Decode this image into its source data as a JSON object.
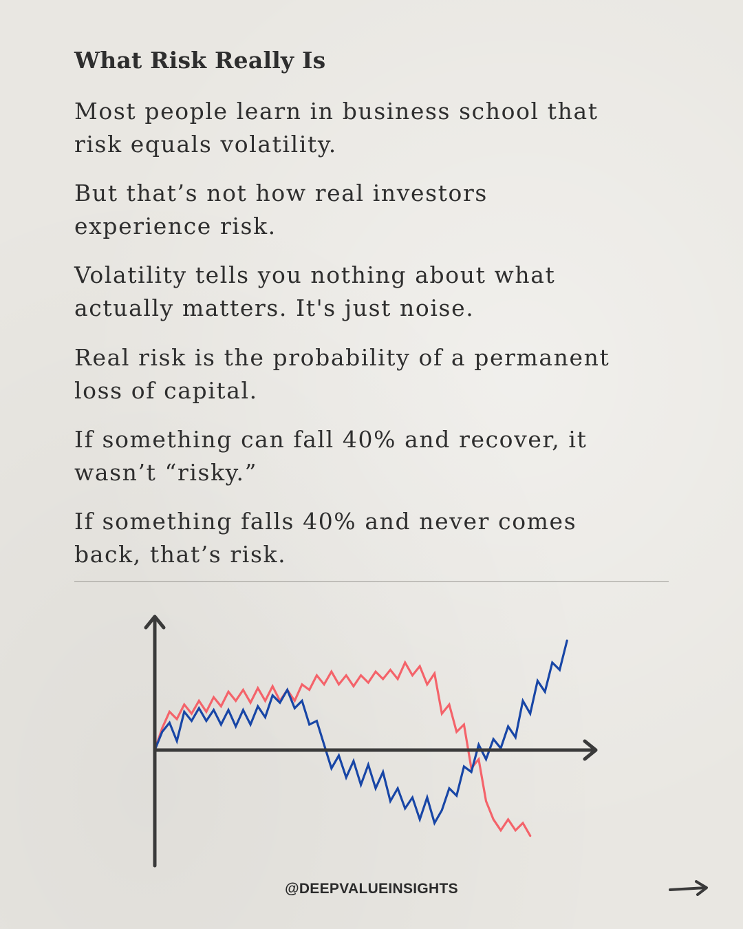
{
  "title": "What Risk Really Is",
  "paragraphs": [
    "Most people learn in business school that\nrisk equals volatility.",
    "But that’s not how real investors\nexperience risk.",
    "Volatility tells you nothing about what\nactually matters. It's just noise.",
    "Real risk is the probability of a permanent\nloss of capital.",
    "If something can fall 40% and recover, it\nwasn’t “risky.”",
    "If something falls 40% and never comes\nback, that’s risk."
  ],
  "chart_data": {
    "type": "line",
    "title": "",
    "xlabel": "",
    "ylabel": "",
    "grid": false,
    "series": [
      {
        "color": "#f4636a",
        "values": [
          0,
          12,
          21,
          17,
          25,
          20,
          27,
          21,
          29,
          24,
          32,
          27,
          33,
          26,
          34,
          27,
          35,
          27,
          33,
          27,
          36,
          33,
          41,
          36,
          43,
          36,
          41,
          35,
          41,
          37,
          43,
          39,
          44,
          39,
          48,
          41,
          46,
          36,
          42,
          20,
          25,
          10,
          14,
          -10,
          -5,
          -28,
          -38,
          -44,
          -38,
          -44,
          -40,
          -47
        ]
      },
      {
        "color": "#1846a6",
        "values": [
          0,
          10,
          15,
          5,
          21,
          16,
          23,
          16,
          22,
          14,
          22,
          13,
          22,
          14,
          24,
          18,
          30,
          26,
          33,
          23,
          27,
          14,
          16,
          3,
          -10,
          -3,
          -15,
          -6,
          -19,
          -8,
          -21,
          -12,
          -28,
          -21,
          -32,
          -26,
          -38,
          -26,
          -40,
          -33,
          -21,
          -25,
          -9,
          -12,
          3,
          -5,
          6,
          1,
          13,
          7,
          27,
          20,
          38,
          32,
          48,
          44,
          60
        ]
      }
    ]
  },
  "handle": "@DEEPVALUEINSIGHTS",
  "icons": {
    "next": "arrow-right-icon"
  }
}
